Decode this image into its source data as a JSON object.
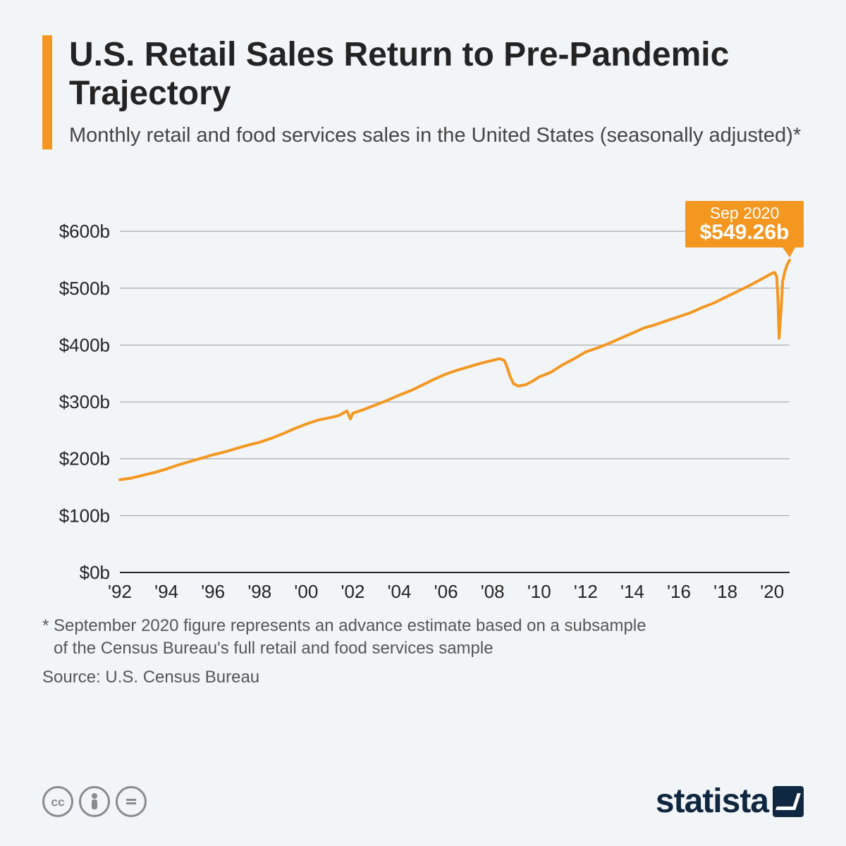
{
  "header": {
    "title": "U.S. Retail Sales Return to Pre-Pandemic Trajectory",
    "subtitle": "Monthly retail and food services sales in the United States (seasonally adjusted)*",
    "accent_color": "#f39721"
  },
  "chart": {
    "type": "line",
    "background_color": "#f2f5f8",
    "grid_color": "#999999",
    "baseline_color": "#232323",
    "line_color": "#f39721",
    "line_width": 4,
    "xlim": [
      1992,
      2020.75
    ],
    "ylim": [
      0,
      620
    ],
    "y_ticks": [
      0,
      100,
      200,
      300,
      400,
      500,
      600
    ],
    "y_tick_labels": [
      "$0b",
      "$100b",
      "$200b",
      "$300b",
      "$400b",
      "$500b",
      "$600b"
    ],
    "x_ticks": [
      1992,
      1994,
      1996,
      1998,
      2000,
      2002,
      2004,
      2006,
      2008,
      2010,
      2012,
      2014,
      2016,
      2018,
      2020
    ],
    "x_tick_labels": [
      "'92",
      "'94",
      "'96",
      "'98",
      "'00",
      "'02",
      "'04",
      "'06",
      "'08",
      "'10",
      "'12",
      "'14",
      "'16",
      "'18",
      "'20"
    ],
    "axis_fontsize": 26,
    "series": [
      {
        "x": 1992.0,
        "y": 163
      },
      {
        "x": 1992.5,
        "y": 166
      },
      {
        "x": 1993.0,
        "y": 171
      },
      {
        "x": 1993.5,
        "y": 176
      },
      {
        "x": 1994.0,
        "y": 182
      },
      {
        "x": 1994.5,
        "y": 189
      },
      {
        "x": 1995.0,
        "y": 195
      },
      {
        "x": 1995.5,
        "y": 201
      },
      {
        "x": 1996.0,
        "y": 207
      },
      {
        "x": 1996.5,
        "y": 212
      },
      {
        "x": 1997.0,
        "y": 218
      },
      {
        "x": 1997.5,
        "y": 224
      },
      {
        "x": 1998.0,
        "y": 229
      },
      {
        "x": 1998.5,
        "y": 236
      },
      {
        "x": 1999.0,
        "y": 244
      },
      {
        "x": 1999.5,
        "y": 253
      },
      {
        "x": 2000.0,
        "y": 261
      },
      {
        "x": 2000.5,
        "y": 268
      },
      {
        "x": 2001.0,
        "y": 272
      },
      {
        "x": 2001.4,
        "y": 276
      },
      {
        "x": 2001.75,
        "y": 284
      },
      {
        "x": 2001.9,
        "y": 270
      },
      {
        "x": 2002.0,
        "y": 280
      },
      {
        "x": 2002.5,
        "y": 287
      },
      {
        "x": 2003.0,
        "y": 295
      },
      {
        "x": 2003.5,
        "y": 303
      },
      {
        "x": 2004.0,
        "y": 312
      },
      {
        "x": 2004.5,
        "y": 320
      },
      {
        "x": 2005.0,
        "y": 330
      },
      {
        "x": 2005.5,
        "y": 340
      },
      {
        "x": 2006.0,
        "y": 349
      },
      {
        "x": 2006.5,
        "y": 356
      },
      {
        "x": 2007.0,
        "y": 362
      },
      {
        "x": 2007.5,
        "y": 368
      },
      {
        "x": 2008.0,
        "y": 373
      },
      {
        "x": 2008.3,
        "y": 376
      },
      {
        "x": 2008.5,
        "y": 373
      },
      {
        "x": 2008.6,
        "y": 364
      },
      {
        "x": 2008.75,
        "y": 345
      },
      {
        "x": 2008.9,
        "y": 332
      },
      {
        "x": 2009.1,
        "y": 328
      },
      {
        "x": 2009.4,
        "y": 330
      },
      {
        "x": 2009.7,
        "y": 336
      },
      {
        "x": 2010.0,
        "y": 344
      },
      {
        "x": 2010.5,
        "y": 352
      },
      {
        "x": 2011.0,
        "y": 365
      },
      {
        "x": 2011.5,
        "y": 376
      },
      {
        "x": 2012.0,
        "y": 388
      },
      {
        "x": 2012.5,
        "y": 395
      },
      {
        "x": 2013.0,
        "y": 403
      },
      {
        "x": 2013.5,
        "y": 412
      },
      {
        "x": 2014.0,
        "y": 421
      },
      {
        "x": 2014.5,
        "y": 430
      },
      {
        "x": 2015.0,
        "y": 436
      },
      {
        "x": 2015.5,
        "y": 443
      },
      {
        "x": 2016.0,
        "y": 450
      },
      {
        "x": 2016.5,
        "y": 457
      },
      {
        "x": 2017.0,
        "y": 466
      },
      {
        "x": 2017.5,
        "y": 474
      },
      {
        "x": 2018.0,
        "y": 484
      },
      {
        "x": 2018.5,
        "y": 494
      },
      {
        "x": 2019.0,
        "y": 504
      },
      {
        "x": 2019.5,
        "y": 515
      },
      {
        "x": 2019.9,
        "y": 524
      },
      {
        "x": 2020.1,
        "y": 528
      },
      {
        "x": 2020.2,
        "y": 520
      },
      {
        "x": 2020.25,
        "y": 480
      },
      {
        "x": 2020.3,
        "y": 412
      },
      {
        "x": 2020.38,
        "y": 460
      },
      {
        "x": 2020.45,
        "y": 512
      },
      {
        "x": 2020.55,
        "y": 530
      },
      {
        "x": 2020.65,
        "y": 542
      },
      {
        "x": 2020.75,
        "y": 549.26
      }
    ],
    "callout": {
      "label_line1": "Sep 2020",
      "label_line2": "$549.26b",
      "box_color": "#f39721",
      "text_color": "#ffffff",
      "anchor_x": 2020.75,
      "anchor_y": 549.26
    }
  },
  "footnote_line1": "* September 2020 figure represents an advance estimate based on a subsample",
  "footnote_line2": "of the Census Bureau's full retail and food services sample",
  "source": "Source: U.S. Census Bureau",
  "logo_text": "statista",
  "cc_icons": [
    "cc",
    "by",
    "nd"
  ]
}
